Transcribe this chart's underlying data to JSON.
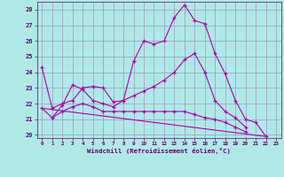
{
  "background_color": "#b0e8e8",
  "grid_color": "#9999bb",
  "line_color": "#aa00aa",
  "xlabel": "Windchill (Refroidissement éolien,°C)",
  "ylim": [
    19.8,
    28.5
  ],
  "xlim": [
    -0.5,
    23.5
  ],
  "yticks": [
    20,
    21,
    22,
    23,
    24,
    25,
    26,
    27,
    28
  ],
  "xticks": [
    0,
    1,
    2,
    3,
    4,
    5,
    6,
    7,
    8,
    9,
    10,
    11,
    12,
    13,
    14,
    15,
    16,
    17,
    18,
    19,
    20,
    21,
    22,
    23
  ],
  "lines": [
    {
      "x": [
        0,
        1,
        2,
        3,
        4,
        5,
        6,
        7,
        8,
        9,
        10,
        11,
        12,
        13,
        14,
        15,
        16,
        17,
        18,
        19,
        20,
        21,
        22
      ],
      "y": [
        24.3,
        21.7,
        22.0,
        22.2,
        23.0,
        23.1,
        23.0,
        22.1,
        22.2,
        24.7,
        26.0,
        25.8,
        26.0,
        27.5,
        28.3,
        27.3,
        27.1,
        25.2,
        23.9,
        22.2,
        21.0,
        20.8,
        19.9
      ]
    },
    {
      "x": [
        1,
        2,
        3,
        4,
        5,
        6,
        7,
        8,
        9,
        10,
        11,
        12,
        13,
        14,
        15,
        16,
        17,
        18,
        19,
        20
      ],
      "y": [
        21.1,
        21.9,
        23.2,
        22.9,
        22.2,
        22.0,
        21.8,
        22.2,
        22.5,
        22.8,
        23.1,
        23.5,
        24.0,
        24.8,
        25.2,
        24.0,
        22.2,
        21.5,
        21.1,
        20.5
      ]
    },
    {
      "x": [
        0,
        1,
        2,
        3,
        4,
        5,
        6,
        7,
        8,
        9,
        10,
        11,
        12,
        13,
        14,
        15,
        16,
        17,
        18,
        19,
        20
      ],
      "y": [
        21.7,
        21.1,
        21.5,
        21.8,
        22.0,
        21.8,
        21.5,
        21.5,
        21.5,
        21.5,
        21.5,
        21.5,
        21.5,
        21.5,
        21.5,
        21.3,
        21.1,
        21.0,
        20.8,
        20.5,
        20.2
      ]
    },
    {
      "x": [
        0,
        22
      ],
      "y": [
        21.7,
        19.9
      ]
    }
  ]
}
